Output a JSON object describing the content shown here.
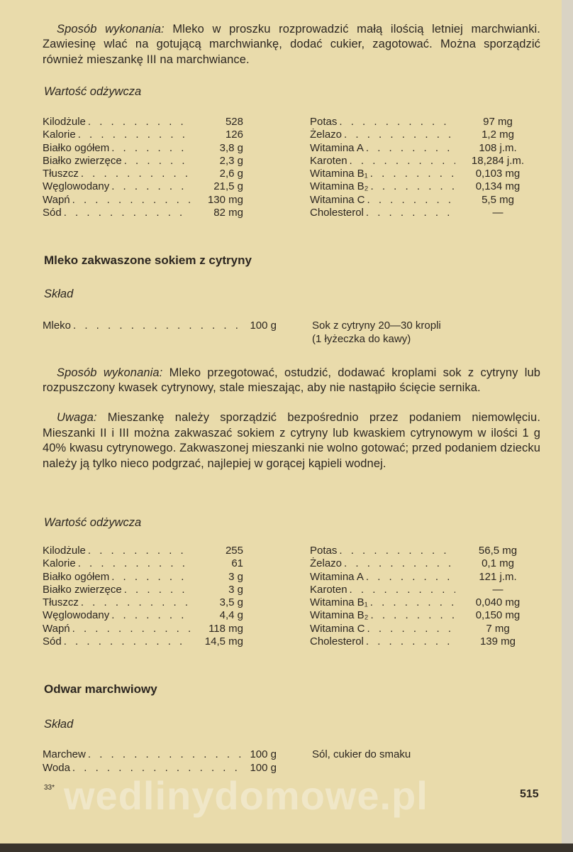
{
  "section1": {
    "method_lead": "Sposób wykonania:",
    "method_text": "Mleko w proszku rozprowadzić małą ilością letniej marchwianki. Zawiesinę wlać na gotującą marchwiankę, dodać cukier, zagotować. Można sporządzić również mieszankę III na marchwiance.",
    "nutrition_title": "Wartość odżywcza",
    "nutrition_left": [
      {
        "label": "Kilodżule",
        "value": "528"
      },
      {
        "label": "Kalorie",
        "value": "126"
      },
      {
        "label": "Białko ogółem",
        "value": "3,8 g"
      },
      {
        "label": "Białko zwierzęce",
        "value": "2,3 g"
      },
      {
        "label": "Tłuszcz",
        "value": "2,6 g"
      },
      {
        "label": "Węglowodany",
        "value": "21,5 g"
      },
      {
        "label": "Wapń",
        "value": "130 mg"
      },
      {
        "label": "Sód",
        "value": "82 mg"
      }
    ],
    "nutrition_right": [
      {
        "label": "Potas",
        "value": "97 mg"
      },
      {
        "label": "Żelazo",
        "value": "1,2 mg"
      },
      {
        "label": "Witamina A",
        "value": "108 j.m."
      },
      {
        "label": "Karoten",
        "value": "18,284 j.m."
      },
      {
        "label": "Witamina B₁",
        "value": "0,103 mg"
      },
      {
        "label": "Witamina B₂",
        "value": "0,134 mg"
      },
      {
        "label": "Witamina C",
        "value": "5,5 mg"
      },
      {
        "label": "Cholesterol",
        "value": "—"
      }
    ]
  },
  "section2": {
    "title": "Mleko zakwaszone sokiem z cytryny",
    "ingredients_title": "Skład",
    "ingredients": [
      {
        "label": "Mleko",
        "value": "100 g"
      }
    ],
    "ingredients_right": [
      "Sok z cytryny 20—30 kropli",
      "(1 łyżeczka do kawy)"
    ],
    "method_lead": "Sposób wykonania:",
    "method_text": "Mleko przegotować, ostudzić, dodawać kroplami sok z cytryny lub rozpuszczony kwasek cytrynowy, stale mieszając, aby nie nastąpiło ścięcie sernika.",
    "note_lead": "Uwaga:",
    "note_text": "Mieszankę należy sporządzić bezpośrednio przez podaniem niemowlęciu. Mieszanki II i III można zakwaszać sokiem z cytryny lub kwaskiem cytrynowym w ilości 1 g 40% kwasu cytrynowego. Zakwaszonej mieszanki nie wolno gotować; przed podaniem dziecku należy ją tylko nieco podgrzać, najlepiej w gorącej kąpieli wodnej.",
    "nutrition_title": "Wartość odżywcza",
    "nutrition_left": [
      {
        "label": "Kilodżule",
        "value": "255"
      },
      {
        "label": "Kalorie",
        "value": "61"
      },
      {
        "label": "Białko ogółem",
        "value": "3 g"
      },
      {
        "label": "Białko zwierzęce",
        "value": "3 g"
      },
      {
        "label": "Tłuszcz",
        "value": "3,5 g"
      },
      {
        "label": "Węglowodany",
        "value": "4,4 g"
      },
      {
        "label": "Wapń",
        "value": "118 mg"
      },
      {
        "label": "Sód",
        "value": "14,5 mg"
      }
    ],
    "nutrition_right": [
      {
        "label": "Potas",
        "value": "56,5 mg"
      },
      {
        "label": "Żelazo",
        "value": "0,1 mg"
      },
      {
        "label": "Witamina A",
        "value": "121 j.m."
      },
      {
        "label": "Karoten",
        "value": "—"
      },
      {
        "label": "Witamina B₁",
        "value": "0,040 mg"
      },
      {
        "label": "Witamina B₂",
        "value": "0,150 mg"
      },
      {
        "label": "Witamina C",
        "value": "7 mg"
      },
      {
        "label": "Cholesterol",
        "value": "139 mg"
      }
    ]
  },
  "section3": {
    "title": "Odwar marchwiowy",
    "ingredients_title": "Skład",
    "ingredients": [
      {
        "label": "Marchew",
        "value": "100 g"
      },
      {
        "label": "Woda",
        "value": "100 g"
      }
    ],
    "ingredients_right": [
      "Sól, cukier do smaku"
    ]
  },
  "footer": {
    "signature": "33*",
    "page_number": "515",
    "watermark": "wedlinydomowe.pl"
  }
}
